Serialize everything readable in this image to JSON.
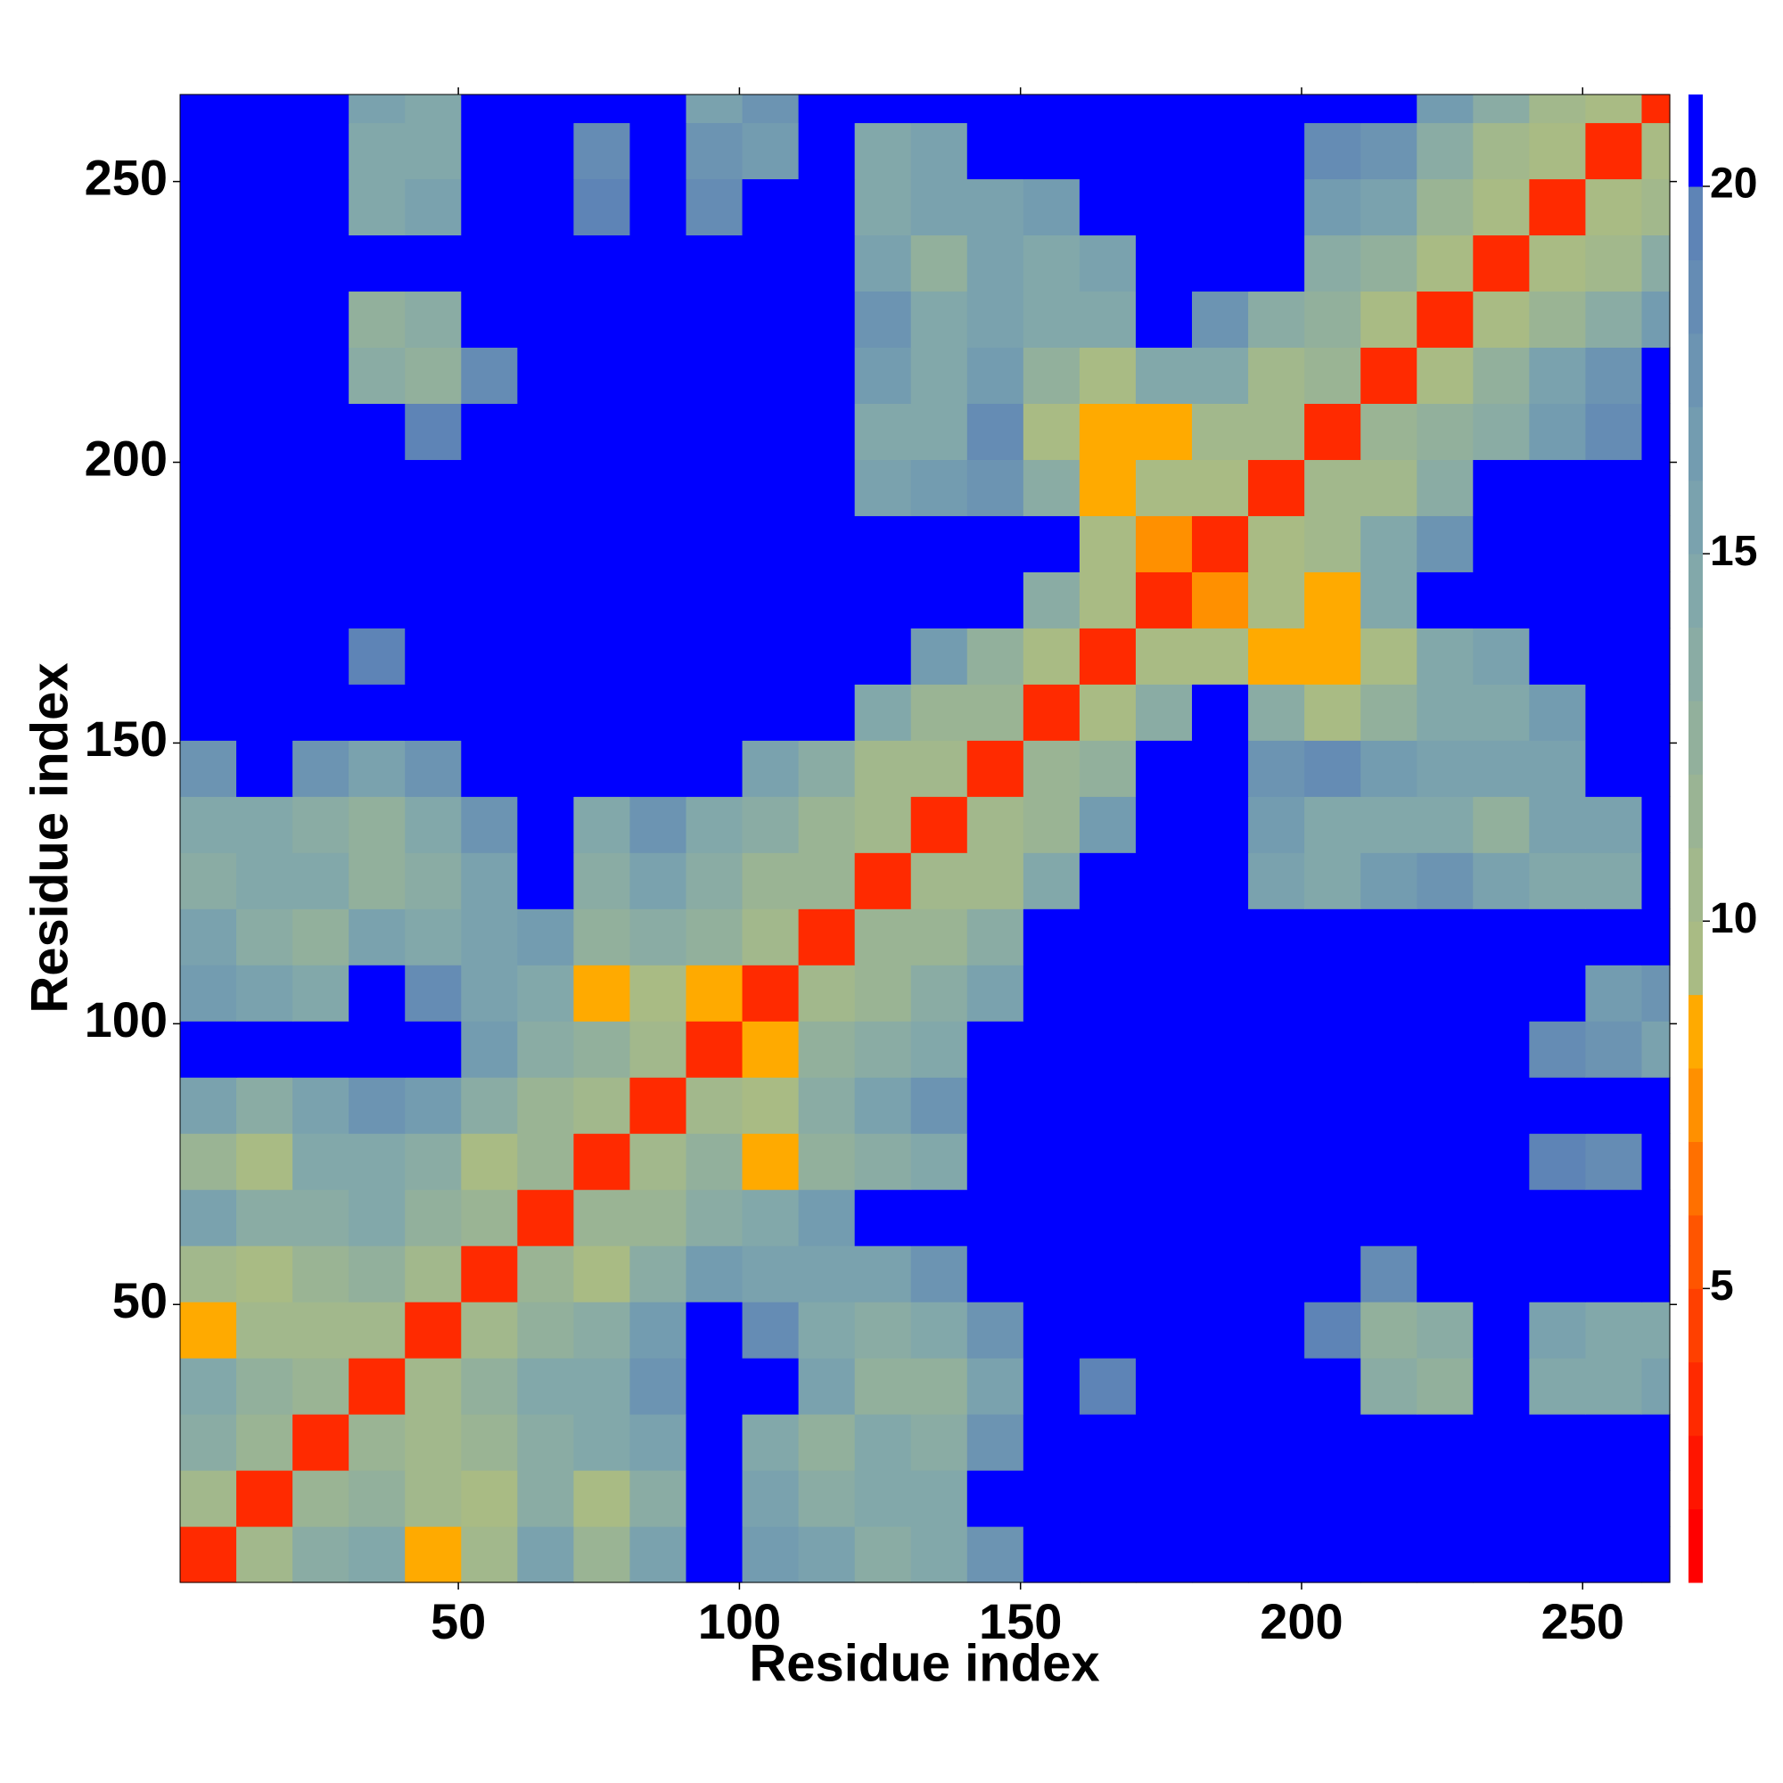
{
  "chart_data": {
    "type": "heatmap",
    "xlabel": "Residue index",
    "ylabel": "Residue index",
    "xlim": [
      0.5,
      265.5
    ],
    "ylim": [
      0.5,
      265.5
    ],
    "xticks": [
      50,
      100,
      150,
      200,
      250
    ],
    "yticks": [
      50,
      100,
      150,
      200,
      250
    ],
    "xbins": [
      0.5,
      10.5,
      20.5,
      30.5,
      40.5,
      50.5,
      60.5,
      70.5,
      80.5,
      90.5,
      100.5,
      110.5,
      120.5,
      130.5,
      140.5,
      150.5,
      160.5,
      170.5,
      180.5,
      190.5,
      200.5,
      210.5,
      220.5,
      230.5,
      240.5,
      250.5,
      260.5,
      265.5
    ],
    "ybins": [
      0.5,
      10.5,
      20.5,
      30.5,
      40.5,
      50.5,
      60.5,
      70.5,
      80.5,
      90.5,
      100.5,
      110.5,
      120.5,
      130.5,
      140.5,
      150.5,
      160.5,
      170.5,
      180.5,
      190.5,
      200.5,
      210.5,
      220.5,
      230.5,
      240.5,
      250.5,
      260.5,
      265.5
    ],
    "z": [
      [
        3,
        10,
        13,
        14,
        8,
        10,
        15,
        11,
        15,
        21,
        16,
        15,
        13,
        14,
        17,
        21,
        21,
        21,
        21,
        21,
        21,
        21,
        21,
        21,
        21,
        21,
        21
      ],
      [
        10,
        3,
        11,
        12,
        10,
        9,
        13,
        9,
        13,
        21,
        15,
        13,
        14,
        14,
        21,
        21,
        21,
        21,
        21,
        21,
        21,
        21,
        21,
        21,
        21,
        21,
        21
      ],
      [
        13,
        11,
        3,
        11,
        10,
        11,
        13,
        14,
        15,
        21,
        14,
        12,
        14,
        13,
        17,
        21,
        21,
        21,
        21,
        21,
        21,
        21,
        21,
        21,
        21,
        21,
        21
      ],
      [
        14,
        12,
        11,
        3,
        10,
        12,
        14,
        14,
        17,
        21,
        21,
        15,
        12,
        12,
        15,
        21,
        19,
        21,
        21,
        21,
        21,
        13,
        12,
        21,
        14,
        14,
        15
      ],
      [
        8,
        10,
        10,
        10,
        3,
        10,
        12,
        13,
        16,
        21,
        18,
        14,
        13,
        14,
        17,
        21,
        21,
        21,
        21,
        21,
        19,
        12,
        13,
        21,
        15,
        14,
        14
      ],
      [
        10,
        9,
        11,
        12,
        10,
        3,
        11,
        9,
        13,
        16,
        15,
        15,
        15,
        17,
        21,
        21,
        21,
        21,
        21,
        21,
        21,
        18,
        21,
        21,
        21,
        21,
        21
      ],
      [
        15,
        13,
        13,
        14,
        12,
        11,
        3,
        11,
        11,
        13,
        14,
        16,
        21,
        21,
        21,
        21,
        21,
        21,
        21,
        21,
        21,
        21,
        21,
        21,
        21,
        21,
        21
      ],
      [
        11,
        9,
        14,
        14,
        13,
        9,
        11,
        3,
        10,
        12,
        8,
        12,
        13,
        14,
        21,
        21,
        21,
        21,
        21,
        21,
        21,
        21,
        21,
        21,
        19,
        18,
        21
      ],
      [
        15,
        13,
        15,
        17,
        16,
        13,
        11,
        10,
        3,
        10,
        9,
        13,
        15,
        17,
        21,
        21,
        21,
        21,
        21,
        21,
        21,
        21,
        21,
        21,
        21,
        21,
        21
      ],
      [
        21,
        21,
        21,
        21,
        21,
        16,
        13,
        12,
        10,
        3,
        8,
        12,
        13,
        14,
        21,
        21,
        21,
        21,
        21,
        21,
        21,
        21,
        21,
        21,
        18,
        17,
        15
      ],
      [
        16,
        15,
        14,
        21,
        18,
        15,
        14,
        8,
        9,
        8,
        3,
        10,
        11,
        13,
        15,
        21,
        21,
        21,
        21,
        21,
        21,
        21,
        21,
        21,
        21,
        16,
        17
      ],
      [
        15,
        13,
        12,
        15,
        14,
        15,
        16,
        12,
        13,
        12,
        10,
        3,
        11,
        11,
        13,
        21,
        21,
        21,
        21,
        21,
        21,
        21,
        21,
        21,
        21,
        21,
        21
      ],
      [
        13,
        14,
        14,
        12,
        13,
        15,
        21,
        13,
        15,
        13,
        11,
        11,
        3,
        10,
        10,
        14,
        21,
        21,
        21,
        15,
        14,
        16,
        17,
        15,
        14,
        14,
        21
      ],
      [
        14,
        14,
        13,
        12,
        14,
        17,
        21,
        14,
        17,
        14,
        13,
        11,
        10,
        3,
        10,
        11,
        16,
        21,
        21,
        16,
        14,
        14,
        14,
        12,
        15,
        15,
        21
      ],
      [
        17,
        21,
        17,
        15,
        17,
        21,
        21,
        21,
        21,
        21,
        15,
        13,
        10,
        10,
        3,
        11,
        12,
        21,
        21,
        17,
        18,
        16,
        15,
        15,
        15,
        21,
        21
      ],
      [
        21,
        21,
        21,
        21,
        21,
        21,
        21,
        21,
        21,
        21,
        21,
        21,
        14,
        11,
        11,
        3,
        9,
        13,
        21,
        13,
        9,
        12,
        14,
        14,
        16,
        21,
        21
      ],
      [
        21,
        21,
        21,
        19,
        21,
        21,
        21,
        21,
        21,
        21,
        21,
        21,
        21,
        16,
        12,
        9,
        3,
        9,
        9,
        8,
        8,
        9,
        14,
        15,
        21,
        21,
        21
      ],
      [
        21,
        21,
        21,
        21,
        21,
        21,
        21,
        21,
        21,
        21,
        21,
        21,
        21,
        21,
        21,
        13,
        9,
        3,
        7,
        9,
        8,
        14,
        21,
        21,
        21,
        21,
        21
      ],
      [
        21,
        21,
        21,
        21,
        21,
        21,
        21,
        21,
        21,
        21,
        21,
        21,
        21,
        21,
        21,
        21,
        9,
        7,
        3,
        9,
        10,
        14,
        17,
        21,
        21,
        21,
        21
      ],
      [
        21,
        21,
        21,
        21,
        21,
        21,
        21,
        21,
        21,
        21,
        21,
        21,
        15,
        16,
        17,
        13,
        8,
        9,
        9,
        3,
        10,
        10,
        13,
        21,
        21,
        21,
        21
      ],
      [
        21,
        21,
        21,
        21,
        19,
        21,
        21,
        21,
        21,
        21,
        21,
        21,
        14,
        14,
        18,
        9,
        8,
        8,
        10,
        10,
        3,
        11,
        12,
        13,
        16,
        18,
        21
      ],
      [
        21,
        21,
        21,
        13,
        12,
        18,
        21,
        21,
        21,
        21,
        21,
        21,
        16,
        14,
        16,
        12,
        9,
        14,
        14,
        10,
        11,
        3,
        9,
        12,
        15,
        17,
        21
      ],
      [
        21,
        21,
        21,
        12,
        13,
        21,
        21,
        21,
        21,
        21,
        21,
        21,
        17,
        14,
        15,
        14,
        14,
        21,
        17,
        13,
        12,
        9,
        3,
        9,
        11,
        13,
        16
      ],
      [
        21,
        21,
        21,
        21,
        21,
        21,
        21,
        21,
        21,
        21,
        21,
        21,
        15,
        12,
        15,
        14,
        15,
        21,
        21,
        21,
        13,
        12,
        9,
        3,
        9,
        10,
        13
      ],
      [
        21,
        21,
        21,
        14,
        15,
        21,
        21,
        19,
        21,
        18,
        21,
        21,
        14,
        15,
        15,
        16,
        21,
        21,
        21,
        21,
        16,
        15,
        11,
        9,
        3,
        9,
        10
      ],
      [
        21,
        21,
        21,
        14,
        14,
        21,
        21,
        18,
        21,
        17,
        16,
        21,
        14,
        15,
        21,
        21,
        21,
        21,
        21,
        21,
        18,
        17,
        13,
        10,
        9,
        3,
        9
      ],
      [
        21,
        21,
        21,
        15,
        14,
        21,
        21,
        21,
        21,
        15,
        17,
        21,
        21,
        21,
        21,
        21,
        21,
        21,
        21,
        21,
        21,
        21,
        16,
        13,
        10,
        9,
        3
      ]
    ],
    "colorbar": {
      "levels": [
        1,
        2,
        3,
        4,
        5,
        6,
        7,
        8,
        9,
        10,
        11,
        12,
        13,
        14,
        15,
        16,
        17,
        18,
        19,
        20,
        21.25
      ],
      "colors": [
        "#ff0000",
        "#ff1500",
        "#ff2a00",
        "#ff4000",
        "#ff5500",
        "#ff7000",
        "#ff9000",
        "#ffaa00",
        "#a9bb84",
        "#a2b88c",
        "#9ab494",
        "#92b09c",
        "#8aaca4",
        "#82a8aa",
        "#7aa2ae",
        "#739cb0",
        "#6c94b2",
        "#658cb4",
        "#5e84b6",
        "#0000ff"
      ],
      "ticks": [
        5,
        10,
        15,
        20
      ]
    }
  }
}
